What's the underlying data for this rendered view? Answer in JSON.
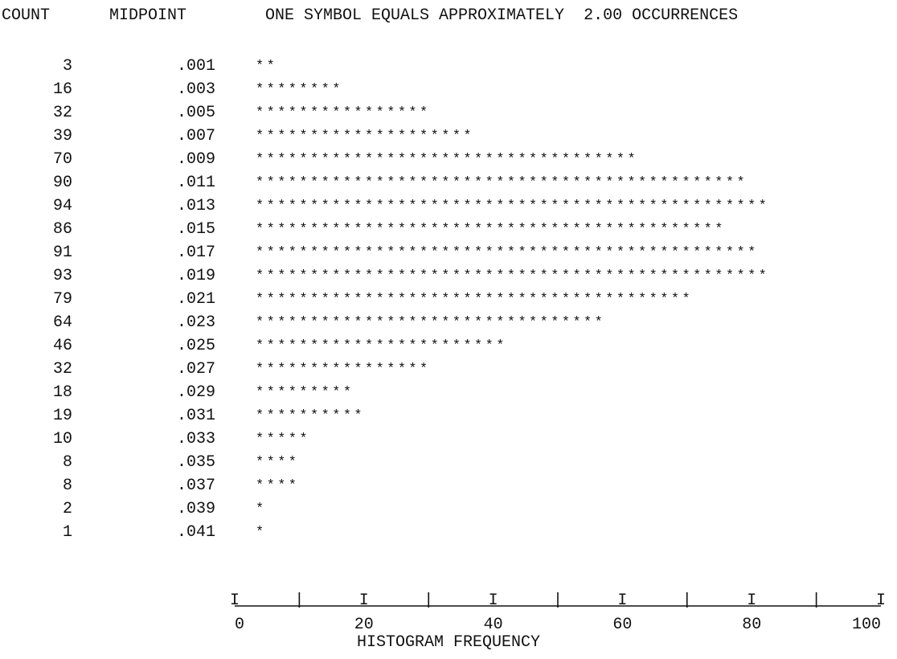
{
  "header": {
    "count_label": "COUNT",
    "midpoint_label": "MIDPOINT",
    "symbol_note": "ONE SYMBOL EQUALS APPROXIMATELY  2.00 OCCURRENCES"
  },
  "chart_data": {
    "type": "bar",
    "orientation": "horizontal",
    "symbol": "*",
    "occurrences_per_symbol": 2.0,
    "categories": [
      ".001",
      ".003",
      ".005",
      ".007",
      ".009",
      ".011",
      ".013",
      ".015",
      ".017",
      ".019",
      ".021",
      ".023",
      ".025",
      ".027",
      ".029",
      ".031",
      ".033",
      ".035",
      ".037",
      ".039",
      ".041"
    ],
    "values": [
      3,
      16,
      32,
      39,
      70,
      90,
      94,
      86,
      91,
      93,
      79,
      64,
      46,
      32,
      18,
      19,
      10,
      8,
      8,
      2,
      1
    ],
    "xlabel": "HISTOGRAM FREQUENCY",
    "ylabel": "MIDPOINT",
    "xlim": [
      0,
      100
    ],
    "xticks": [
      "0",
      "20",
      "40",
      "60",
      "80",
      "100"
    ],
    "axis_rule": "I____|____I____|____I____|____I____|____I____|____I"
  }
}
